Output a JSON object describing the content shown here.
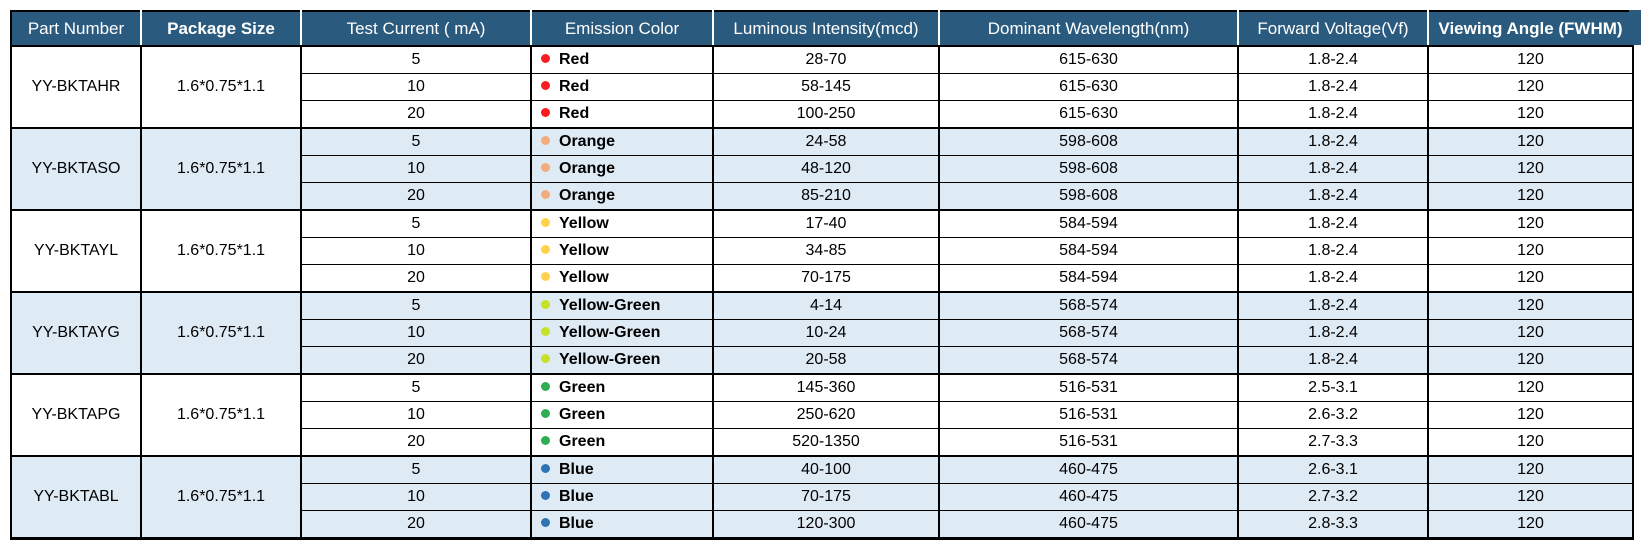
{
  "colors": {
    "header_bg": "#2A5A7E",
    "header_text": "#FFFFFF",
    "alt_row_bg": "#DEEAF4",
    "border": "#000000",
    "dot_red": "#FB1D1D",
    "dot_orange": "#F3AC7D",
    "dot_yellow": "#FFD24D",
    "dot_yellow_green": "#C7E128",
    "dot_green": "#2FAD52",
    "dot_blue": "#2E74B5"
  },
  "table": {
    "columns": [
      {
        "label": "Part Number",
        "bold": false
      },
      {
        "label": "Package Size",
        "bold": true
      },
      {
        "label": "Test Current ( mA)",
        "bold": false
      },
      {
        "label": "Emission Color",
        "bold": false
      },
      {
        "label": "Luminous Intensity(mcd)",
        "bold": false
      },
      {
        "label": "Dominant Wavelength(nm)",
        "bold": false
      },
      {
        "label": "Forward Voltage(Vf)",
        "bold": false
      },
      {
        "label": "Viewing Angle (FWHM)",
        "bold": true
      }
    ],
    "groups": [
      {
        "part_number": "YY-BKTAHR",
        "package_size": "1.6*0.75*1.1",
        "dot_color": "#FB1D1D",
        "rows": [
          {
            "test_current": "5",
            "emission_color": "Red",
            "luminous_intensity": "28-70",
            "dominant_wavelength": "615-630",
            "forward_voltage": "1.8-2.4",
            "viewing_angle": "120"
          },
          {
            "test_current": "10",
            "emission_color": "Red",
            "luminous_intensity": "58-145",
            "dominant_wavelength": "615-630",
            "forward_voltage": "1.8-2.4",
            "viewing_angle": "120"
          },
          {
            "test_current": "20",
            "emission_color": "Red",
            "luminous_intensity": "100-250",
            "dominant_wavelength": "615-630",
            "forward_voltage": "1.8-2.4",
            "viewing_angle": "120"
          }
        ]
      },
      {
        "part_number": "YY-BKTASO",
        "package_size": "1.6*0.75*1.1",
        "dot_color": "#F3AC7D",
        "rows": [
          {
            "test_current": "5",
            "emission_color": "Orange",
            "luminous_intensity": "24-58",
            "dominant_wavelength": "598-608",
            "forward_voltage": "1.8-2.4",
            "viewing_angle": "120"
          },
          {
            "test_current": "10",
            "emission_color": "Orange",
            "luminous_intensity": "48-120",
            "dominant_wavelength": "598-608",
            "forward_voltage": "1.8-2.4",
            "viewing_angle": "120"
          },
          {
            "test_current": "20",
            "emission_color": "Orange",
            "luminous_intensity": "85-210",
            "dominant_wavelength": "598-608",
            "forward_voltage": "1.8-2.4",
            "viewing_angle": "120"
          }
        ]
      },
      {
        "part_number": "YY-BKTAYL",
        "package_size": "1.6*0.75*1.1",
        "dot_color": "#FFD24D",
        "rows": [
          {
            "test_current": "5",
            "emission_color": "Yellow",
            "luminous_intensity": "17-40",
            "dominant_wavelength": "584-594",
            "forward_voltage": "1.8-2.4",
            "viewing_angle": "120"
          },
          {
            "test_current": "10",
            "emission_color": "Yellow",
            "luminous_intensity": "34-85",
            "dominant_wavelength": "584-594",
            "forward_voltage": "1.8-2.4",
            "viewing_angle": "120"
          },
          {
            "test_current": "20",
            "emission_color": "Yellow",
            "luminous_intensity": "70-175",
            "dominant_wavelength": "584-594",
            "forward_voltage": "1.8-2.4",
            "viewing_angle": "120"
          }
        ]
      },
      {
        "part_number": "YY-BKTAYG",
        "package_size": "1.6*0.75*1.1",
        "dot_color": "#C7E128",
        "rows": [
          {
            "test_current": "5",
            "emission_color": "Yellow-Green",
            "luminous_intensity": "4-14",
            "dominant_wavelength": "568-574",
            "forward_voltage": "1.8-2.4",
            "viewing_angle": "120"
          },
          {
            "test_current": "10",
            "emission_color": "Yellow-Green",
            "luminous_intensity": "10-24",
            "dominant_wavelength": "568-574",
            "forward_voltage": "1.8-2.4",
            "viewing_angle": "120"
          },
          {
            "test_current": "20",
            "emission_color": "Yellow-Green",
            "luminous_intensity": "20-58",
            "dominant_wavelength": "568-574",
            "forward_voltage": "1.8-2.4",
            "viewing_angle": "120"
          }
        ]
      },
      {
        "part_number": "YY-BKTAPG",
        "package_size": "1.6*0.75*1.1",
        "dot_color": "#2FAD52",
        "rows": [
          {
            "test_current": "5",
            "emission_color": "Green",
            "luminous_intensity": "145-360",
            "dominant_wavelength": "516-531",
            "forward_voltage": "2.5-3.1",
            "viewing_angle": "120"
          },
          {
            "test_current": "10",
            "emission_color": "Green",
            "luminous_intensity": "250-620",
            "dominant_wavelength": "516-531",
            "forward_voltage": "2.6-3.2",
            "viewing_angle": "120"
          },
          {
            "test_current": "20",
            "emission_color": "Green",
            "luminous_intensity": "520-1350",
            "dominant_wavelength": "516-531",
            "forward_voltage": "2.7-3.3",
            "viewing_angle": "120"
          }
        ]
      },
      {
        "part_number": "YY-BKTABL",
        "package_size": "1.6*0.75*1.1",
        "dot_color": "#2E74B5",
        "rows": [
          {
            "test_current": "5",
            "emission_color": "Blue",
            "luminous_intensity": "40-100",
            "dominant_wavelength": "460-475",
            "forward_voltage": "2.6-3.1",
            "viewing_angle": "120"
          },
          {
            "test_current": "10",
            "emission_color": "Blue",
            "luminous_intensity": "70-175",
            "dominant_wavelength": "460-475",
            "forward_voltage": "2.7-3.2",
            "viewing_angle": "120"
          },
          {
            "test_current": "20",
            "emission_color": "Blue",
            "luminous_intensity": "120-300",
            "dominant_wavelength": "460-475",
            "forward_voltage": "2.8-3.3",
            "viewing_angle": "120"
          }
        ]
      }
    ]
  }
}
